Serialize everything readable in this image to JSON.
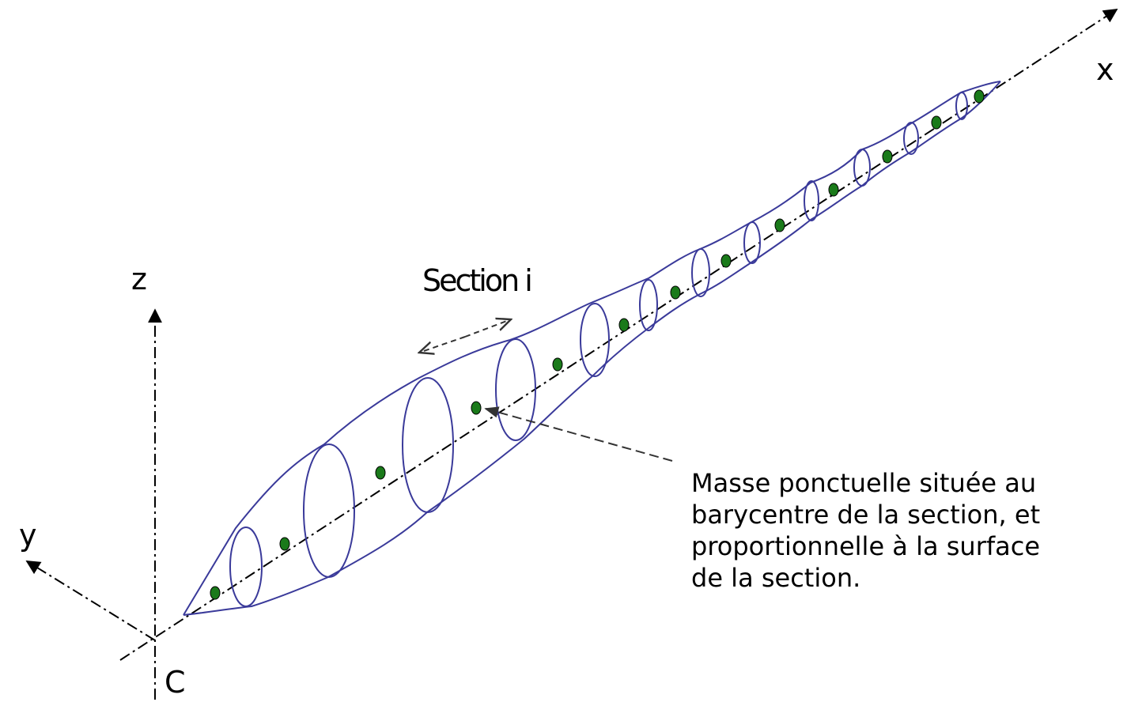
{
  "axes": {
    "x_label": "x",
    "y_label": "y",
    "z_label": "z",
    "origin_label": "C"
  },
  "section_label": "Section i",
  "annotation_lines": [
    "Masse ponctuelle située au",
    "barycentre de la section, et",
    "proportionnelle à la surface",
    "de la section."
  ],
  "colors": {
    "outline": "#3a3a9a",
    "mass_fill": "#1a7a1a",
    "axis": "#000000",
    "leader": "#333333"
  }
}
